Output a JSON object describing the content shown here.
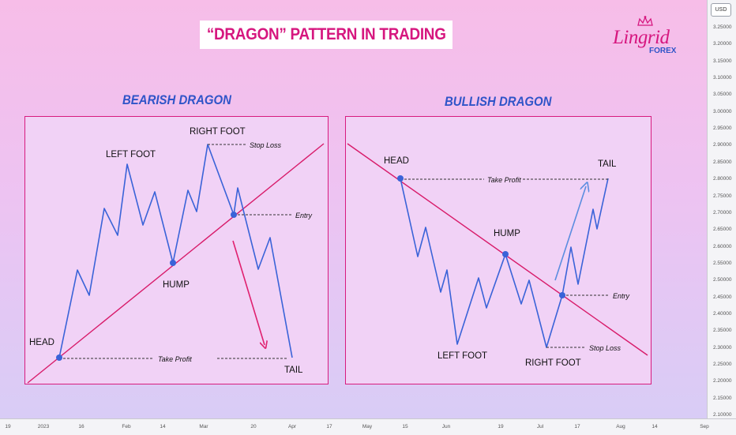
{
  "title": "“DRAGON” PATTERN IN TRADING",
  "logo": {
    "name": "Lingrid",
    "sub": "FOREX"
  },
  "price_axis": {
    "currency": "USD",
    "labels": [
      "3.25000",
      "3.20000",
      "3.15000",
      "3.10000",
      "3.05000",
      "3.00000",
      "2.95000",
      "2.90000",
      "2.85000",
      "2.80000",
      "2.75000",
      "2.70000",
      "2.65000",
      "2.60000",
      "2.55000",
      "2.50000",
      "2.45000",
      "2.40000",
      "2.35000",
      "2.30000",
      "2.25000",
      "2.20000",
      "2.15000",
      "2.10000"
    ]
  },
  "date_axis": {
    "labels": [
      "19",
      "2023",
      "16",
      "Feb",
      "14",
      "Mar",
      "20",
      "Apr",
      "17",
      "May",
      "15",
      "Jun",
      "19",
      "Jul",
      "17",
      "Aug",
      "14",
      "Sep"
    ]
  },
  "bearish": {
    "heading": "BEARISH DRAGON",
    "labels": {
      "head": "HEAD",
      "left_foot": "LEFT FOOT",
      "right_foot": "RIGHT FOOT",
      "hump": "HUMP",
      "tail": "TAIL",
      "stop_loss": "Stop Loss",
      "entry": "Entry",
      "take_profit": "Take Profit"
    }
  },
  "bullish": {
    "heading": "BULLISH DRAGON",
    "labels": {
      "head": "HEAD",
      "left_foot": "LEFT FOOT",
      "right_foot": "RIGHT FOOT",
      "hump": "HUMP",
      "tail": "TAIL",
      "stop_loss": "Stop Loss",
      "entry": "Entry",
      "take_profit": "Take Profit"
    }
  },
  "colors": {
    "accent": "#d6177f",
    "line": "#3a63d8",
    "trendline": "#d81b6a",
    "panel": "#f1d2f6"
  }
}
